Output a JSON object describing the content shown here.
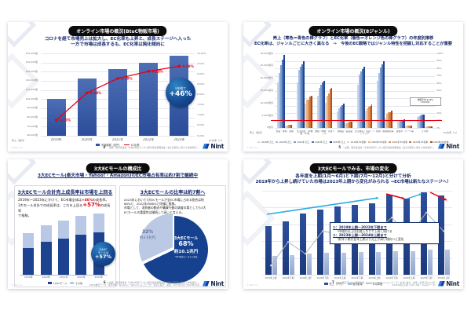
{
  "brand": {
    "name": "Nint",
    "accent": "#16418f"
  },
  "slides": {
    "s1": {
      "page": "4",
      "title": "オンライン市場の概況(BtoC物販市場)",
      "subtitle": [
        "コロナを経て市場売上は拡大し、EC化率も上昇と、成長ステージへ入った",
        "一方で市場は成長するも、EC化率は鈍化傾向に"
      ],
      "badge": {
        "top": "5年間で",
        "main": "+46%"
      },
      "source": [
        "｜出典：経済産業省「令和5年度デジタル取引環境整備事業（電子商取引に関する市場調査）」"
      ],
      "copyright": "© Nint Inc."
    },
    "s2": {
      "page": "5",
      "title": "オンライン市場の概況(8ジャンル)",
      "subtitle": [
        "売上（寒色＝青色の棒グラフ）とEC化率（暖色＝オレンジ色の棒グラフ）の年度別推移",
        "EC化率は、ジャンルごとに大きく異なる　⇒　今後のEC戦略ではジャンル特性を把握し対応することが重要"
      ],
      "source": [
        "｜出典：経済産業省「令和5年度デジタル取引環境整備事業（電子商取引に関する市場調査）」"
      ],
      "copyright": "© Nint Inc."
    },
    "s3": {
      "page": "6",
      "title": "3大ECモールの構成比",
      "subtitle": "3大ECモール(楽天市場・Yahoo!・Amazon)のEC市場占有率は約7割で継続中",
      "left_heading": "3大ECモール合計売上成長率は市場を上回る",
      "left_lines": [
        [
          {
            "t": "2019年～2023年にかけて、EC市場全体は"
          },
          {
            "t": "+46%",
            "c": "redS"
          },
          {
            "t": "の成長率。"
          }
        ],
        [
          {
            "t": "3大モール合計での成長率は、これを上回る"
          },
          {
            "t": "+57%",
            "c": "redB"
          },
          {
            "t": "の成長率"
          }
        ],
        [
          {
            "t": "で推移。"
          }
        ]
      ],
      "badge": [
        "3大EC",
        "モールは",
        "+57%"
      ],
      "right_heading": "3大ECモールの比率は約7割へ",
      "right_lines": [
        "2023年において3大ECモールが全EC市場に占める割合は約",
        "68%と、2022年の68%と同様に推移。",
        "市場として、消費者の動向や購買行動の調査の場としても3大",
        "ECモールの重要性は継続して高いと言える。"
      ],
      "source": [
        "※出典：経済産業省「令和5年度デジタル取引環境整備事業（電子商取引に関する市場調査）」",
        "※Nint推定データ（楽天市場・Amazon・Yahoo!ショッピング）を基に集計　期間：2019年1月～2023年12月"
      ],
      "copyright": "© Nint Inc."
    },
    "s4": {
      "page": "7",
      "title": "3大ECモールでみる、市場の変化",
      "subtitle": [
        "各年度を上期(1月～6月)と下期(7月～12月)と分けて分析",
        "2019年から上昇し続けていた市場は2023年上期から変化がみられる ⇒EC市場は新たなステージへ！"
      ],
      "annotation": [
        "①：2019年上期～2022年下期まで",
        "└市場の売上は右肩上がりで上昇し続ける",
        "②：2023年上期～2024年上期まで",
        "└前年下期が翌年上期より売上が高い傾向へと変化"
      ],
      "source": [
        "※Nint推定データ（楽天市場・Amazon・Yahoo!ショッピング）を基に集計　対象：各年1月～12月",
        "※2024年は上期（1月～6月）のみのデータ"
      ],
      "copyright": "© Nint Inc."
    }
  },
  "chart_data": [
    {
      "type": "bar+line",
      "title": "オンライン市場の概況(BtoC物販市場)",
      "categories": [
        "2019年",
        "2020年",
        "2021年",
        "2022年",
        "2023年"
      ],
      "bars": {
        "name": "市場規模（億円）",
        "color": "#33539f",
        "values": [
          100515,
          122333,
          132865,
          139997,
          147760
        ]
      },
      "line": {
        "name": "EC化率",
        "color": "#e60012",
        "values": [
          6.76,
          8.08,
          8.78,
          9.13,
          9.38
        ],
        "labels": [
          "6.76%",
          "8.08%",
          "8.78%",
          "9.13%",
          "9.38%"
        ]
      },
      "ylim_left": [
        60000,
        150000
      ],
      "yticks_left": [
        "150,000億",
        "140,000億",
        "130,000億",
        "120,000億",
        "110,000億",
        "100,000億",
        "90,000億",
        "80,000億",
        "70,000億",
        "60,000億"
      ],
      "ylim_right": [
        6,
        10
      ],
      "yticks_right": [
        "10.00%",
        "9.50%",
        "9.00%",
        "8.50%",
        "8.00%",
        "7.50%",
        "7.00%",
        "6.50%",
        "6.00%"
      ],
      "axis_label_left": "売上（億円）",
      "axis_label_right": "EC化率（%）",
      "growth_5yr": "+46%"
    },
    {
      "type": "grouped-bar",
      "title": "オンライン市場の概況(8ジャンル)",
      "years": [
        "2019年",
        "2020年",
        "2021年",
        "2022年",
        "2023年"
      ],
      "genres": [
        {
          "label": "食品・飲料・酒類",
          "sales": [
            18233,
            22086,
            25199,
            27505,
            29299
          ],
          "ec_rate": [
            2.89,
            3.31,
            3.77,
            4.16,
            4.29
          ]
        },
        {
          "label": "生活家電・AV機器・PC等",
          "sales": [
            18239,
            23489,
            24584,
            25528,
            26838
          ],
          "ec_rate": [
            32.75,
            37.45,
            38.13,
            42.01,
            42.88
          ]
        },
        {
          "label": "書籍・映像・音楽ソフト",
          "sales": [
            13015,
            16238,
            17518,
            18222,
            18886
          ],
          "ec_rate": [
            34.18,
            42.97,
            46.2,
            52.16,
            53.49
          ]
        },
        {
          "label": "化粧品・医薬品",
          "sales": [
            6611,
            7787,
            8552,
            9191,
            9709
          ],
          "ec_rate": [
            6.0,
            6.72,
            7.52,
            8.24,
            8.64
          ]
        },
        {
          "label": "生活雑貨・家具・インテリア",
          "sales": [
            17428,
            21322,
            22752,
            23541,
            24721
          ],
          "ec_rate": [
            23.32,
            26.03,
            28.25,
            29.59,
            31.54
          ]
        },
        {
          "label": "衣類・服飾雑貨等",
          "sales": [
            19100,
            22203,
            24279,
            25499,
            26712
          ],
          "ec_rate": [
            13.87,
            19.44,
            21.15,
            21.56,
            22.88
          ]
        },
        {
          "label": "自動車・パーツ等",
          "sales": [
            2396,
            2784,
            3016,
            3183,
            3355
          ],
          "ec_rate": [
            2.88,
            3.23,
            3.38,
            3.5,
            3.66
          ]
        },
        {
          "label": "その他",
          "sales": [
            4460,
            4780,
            5020,
            5260,
            5510
          ],
          "ec_rate": [
            1.54,
            1.85,
            1.96,
            2.04,
            2.12
          ]
        }
      ],
      "ylim_left": [
        0,
        30000
      ],
      "yticks_left": [
        "30,000億円",
        "25,000億円",
        "20,000億円",
        "15,000億円",
        "10,000億円",
        "5,000億円",
        "0億円"
      ],
      "ylim_right": [
        0,
        100
      ],
      "yticks_right": [
        "100%",
        "90%",
        "80%",
        "70%",
        "60%",
        "50%",
        "40%",
        "30%",
        "20%",
        "10%",
        "0%"
      ],
      "avg_line_pct": 9.38,
      "callout": [
        "物販平均 9.38%",
        "（2023年）"
      ],
      "legend": [
        "2019年 売上",
        "2020年 売上",
        "2021年 売上",
        "2022年 売上",
        "2023年 売上",
        "2019年 EC化率",
        "2020年 EC化率",
        "2021年 EC化率",
        "2022年 EC化率",
        "2023年 EC化率"
      ],
      "palette_sales": [
        "#c8d6ec",
        "#a3bde1",
        "#7b9cd0",
        "#4b72b4",
        "#1f4690"
      ],
      "palette_rate": [
        "#f3d3b4",
        "#ecb488",
        "#e29357",
        "#cf7030",
        "#a44d12"
      ],
      "axis_label_left": "売上（億円）",
      "axis_label_right": "EC化率（%）"
    },
    {
      "type": "stacked-bar",
      "unit": "兆円",
      "categories": [
        "2019年",
        "2020年",
        "2021年",
        "2022年",
        "2023年"
      ],
      "series": [
        {
          "name": "3大ECモール",
          "color": "#1d4390",
          "values": [
            6.4,
            7.8,
            8.7,
            9.5,
            10.1
          ]
        },
        {
          "name": "その他",
          "color": "#b9c8e4",
          "values": [
            3.6,
            4.0,
            4.3,
            4.5,
            4.6
          ]
        }
      ],
      "ymax": 15,
      "growth_badge": "+57%"
    },
    {
      "type": "pie",
      "slices": [
        {
          "name": "3大ECモール",
          "pct": 68,
          "pct_label": "68%",
          "amount": "約10.1兆円",
          "color": "#16418f"
        },
        {
          "name": "その他",
          "pct": 32,
          "pct_label": "32%",
          "amount": "約4.6兆円",
          "color": "#bcc9e4"
        }
      ],
      "note": "*Nint推定データより算出"
    },
    {
      "type": "bar+line",
      "title": "3大ECモールでみる、市場の変化",
      "scale": "relative-percent",
      "categories": [
        "2019年上期",
        "2019年下期",
        "2020年上期",
        "2020年下期",
        "2021年上期",
        "2021年下期",
        "2022年上期",
        "2022年下期",
        "2023年上期",
        "2023年下期",
        "2024年上期"
      ],
      "series": [
        {
          "name": "売上（千円）",
          "type": "bar",
          "color": "#2c4f9b",
          "values": [
            58,
            64,
            73,
            78,
            81,
            83,
            85,
            95,
            91,
            98,
            94
          ]
        },
        {
          "name": "販売数量",
          "type": "bar",
          "color": "#a9bcde",
          "values": [
            22,
            23,
            25,
            26,
            26,
            27,
            27,
            28,
            28,
            30,
            30
          ]
        },
        {
          "name": "平均単価",
          "type": "line",
          "color": "#b5b5b5",
          "values": [
            11,
            39,
            25,
            52,
            48,
            55,
            50,
            68,
            46,
            74,
            52
          ]
        }
      ]
    }
  ]
}
